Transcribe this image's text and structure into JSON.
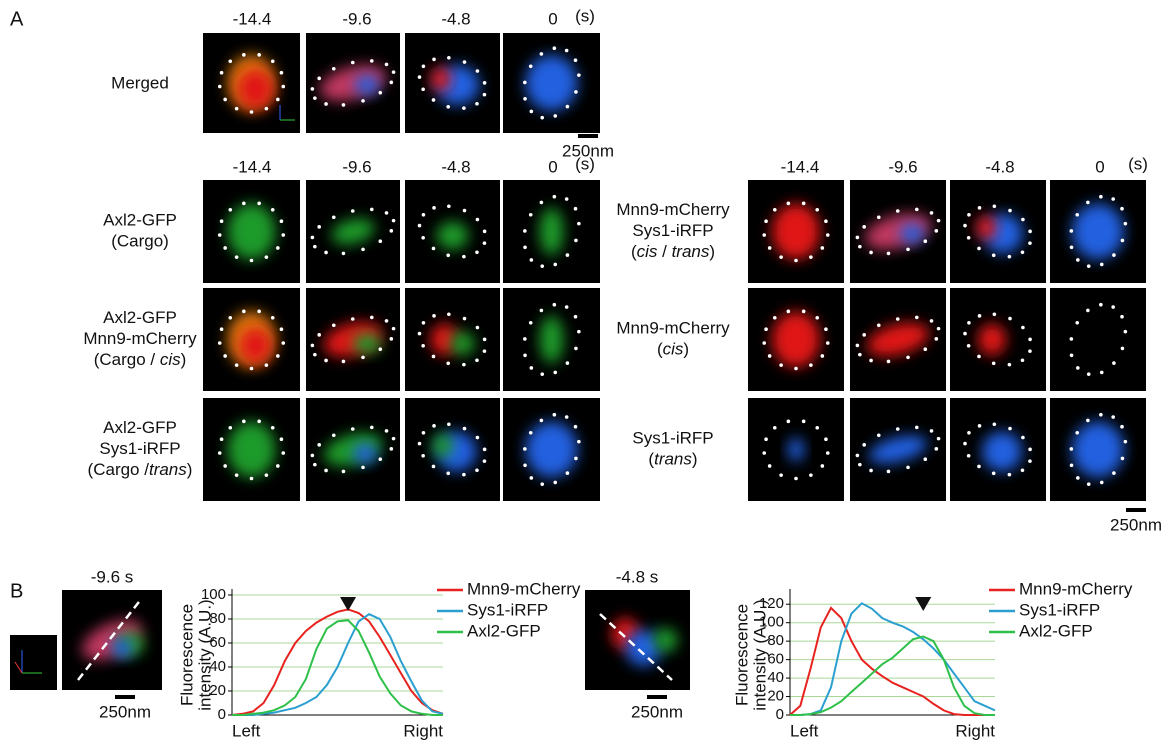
{
  "panel_a": {
    "label": "A",
    "merged": {
      "times": [
        "-14.4",
        "-9.6",
        "-4.8",
        "0"
      ],
      "unit": "(s)",
      "row_label": "Merged",
      "scale_bar": "250nm"
    },
    "cargo_group": {
      "times": [
        "-14.4",
        "-9.6",
        "-4.8",
        "0"
      ],
      "unit": "(s)",
      "rows": [
        {
          "label": [
            [
              "Axl2-GFP"
            ],
            [
              "(Cargo)"
            ]
          ]
        },
        {
          "label": [
            [
              "Axl2-GFP"
            ],
            [
              "Mnn9-mCherry"
            ],
            [
              "(Cargo / ",
              "cis",
              ")"
            ]
          ]
        },
        {
          "label": [
            [
              "Axl2-GFP"
            ],
            [
              "Sys1-iRFP"
            ],
            [
              "(Cargo /",
              "trans",
              ")"
            ]
          ]
        }
      ]
    },
    "golgi_group": {
      "times": [
        "-14.4",
        "-9.6",
        "-4.8",
        "0"
      ],
      "unit": "(s)",
      "scale_bar": "250nm",
      "rows": [
        {
          "label": [
            [
              "Mnn9-mCherry"
            ],
            [
              "Sys1-iRFP"
            ],
            [
              "(",
              "cis",
              " / ",
              "trans",
              ")"
            ]
          ]
        },
        {
          "label": [
            [
              "Mnn9-mCherry"
            ],
            [
              "(",
              "cis",
              ")"
            ]
          ]
        },
        {
          "label": [
            [
              "Sys1-iRFP"
            ],
            [
              "(",
              "trans",
              ")"
            ]
          ]
        }
      ]
    }
  },
  "panel_b": {
    "label": "B",
    "left": {
      "time": "-9.6 s",
      "scale_bar": "250nm"
    },
    "right": {
      "time": "-4.8 s",
      "scale_bar": "250nm"
    }
  },
  "chart_data": [
    {
      "type": "line",
      "ylabel": [
        "Fluorescence",
        "intensity (A.U.)"
      ],
      "categories": [
        "Left",
        null,
        null,
        null,
        null,
        null,
        null,
        null,
        null,
        null,
        null,
        null,
        null,
        null,
        null,
        null,
        null,
        null,
        null,
        null,
        "Right"
      ],
      "ylim": [
        0,
        100
      ],
      "yticks": [
        0,
        20,
        40,
        60,
        80,
        100
      ],
      "grid": true,
      "legend": "outside-right",
      "arrow_index": 11,
      "series": [
        {
          "name": "Mnn9-mCherry",
          "color": "#e8231f",
          "values": [
            0,
            1,
            3,
            10,
            25,
            45,
            60,
            70,
            77,
            82,
            86,
            88,
            85,
            78,
            65,
            50,
            35,
            20,
            10,
            4,
            1
          ]
        },
        {
          "name": "Sys1-iRFP",
          "color": "#2a9fd0",
          "values": [
            0,
            0,
            0,
            1,
            2,
            4,
            6,
            10,
            15,
            25,
            40,
            60,
            78,
            84,
            80,
            65,
            45,
            28,
            12,
            3,
            1
          ]
        },
        {
          "name": "Axl2-GFP",
          "color": "#2fc04a",
          "values": [
            0,
            0,
            1,
            2,
            4,
            8,
            15,
            30,
            55,
            72,
            78,
            79,
            70,
            52,
            32,
            18,
            8,
            3,
            1,
            0,
            0
          ]
        }
      ]
    },
    {
      "type": "line",
      "ylabel": [
        "Fluorescence",
        "intensity (A.U.)"
      ],
      "categories": [
        "Left",
        null,
        null,
        null,
        null,
        null,
        null,
        null,
        null,
        null,
        null,
        null,
        null,
        null,
        null,
        null,
        null,
        null,
        null,
        null,
        "Right"
      ],
      "ylim": [
        0,
        130
      ],
      "yticks": [
        0,
        20,
        40,
        60,
        80,
        100,
        120
      ],
      "grid": true,
      "legend": "outside-right",
      "arrow_index": 13,
      "series": [
        {
          "name": "Mnn9-mCherry",
          "color": "#e8231f",
          "values": [
            0,
            10,
            50,
            95,
            116,
            105,
            80,
            60,
            50,
            42,
            35,
            30,
            25,
            20,
            12,
            5,
            1,
            0,
            0,
            0,
            0
          ]
        },
        {
          "name": "Sys1-iRFP",
          "color": "#2a9fd0",
          "values": [
            0,
            0,
            1,
            5,
            30,
            80,
            110,
            121,
            115,
            105,
            100,
            96,
            90,
            82,
            72,
            60,
            45,
            30,
            15,
            10,
            5
          ]
        },
        {
          "name": "Axl2-GFP",
          "color": "#2fc04a",
          "values": [
            0,
            0,
            1,
            3,
            8,
            15,
            25,
            35,
            45,
            55,
            62,
            72,
            82,
            85,
            80,
            60,
            30,
            10,
            2,
            0,
            0
          ]
        }
      ]
    }
  ]
}
